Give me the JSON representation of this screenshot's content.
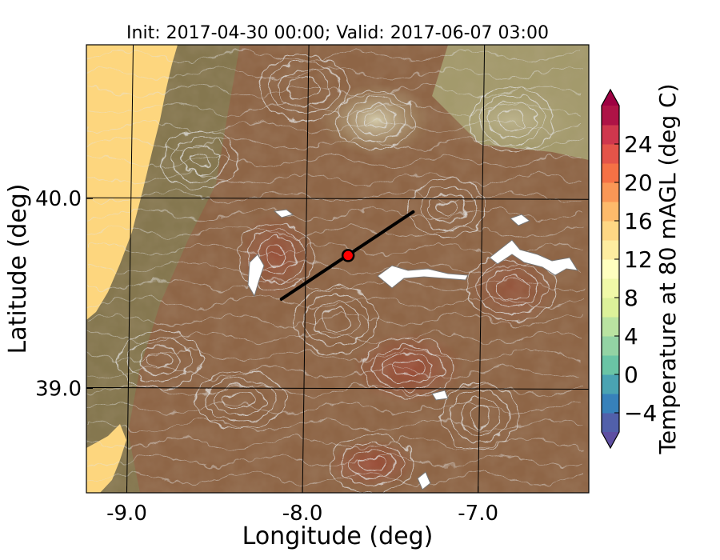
{
  "chart_data": {
    "type": "heatmap",
    "title": "Init: 2017-04-30 00:00; Valid: 2017-06-07 03:00",
    "xlabel": "Longitude (deg)",
    "ylabel": "Latitude (deg)",
    "xlim": [
      -9.23,
      -6.37
    ],
    "ylim": [
      38.45,
      40.81
    ],
    "xticks": [
      -9.0,
      -8.0,
      -7.0
    ],
    "xtick_labels": [
      "-9.0",
      "-8.0",
      "-7.0"
    ],
    "yticks": [
      39.0,
      40.0
    ],
    "ytick_labels": [
      "39.0",
      "40.0"
    ],
    "grid": true,
    "colorbar": {
      "label": "Temperature at 80 mAGL (deg C)",
      "min": -6,
      "max": 28,
      "step": 2,
      "extend": "both",
      "ticks": [
        -4,
        0,
        4,
        8,
        12,
        16,
        20,
        24
      ],
      "tick_labels": [
        "−4",
        "0",
        "4",
        "8",
        "12",
        "16",
        "20",
        "24"
      ]
    },
    "transect": {
      "start": {
        "lon": -8.12,
        "lat": 39.47
      },
      "end": {
        "lon": -7.37,
        "lat": 39.93
      },
      "color": "#000000"
    },
    "point": {
      "lon": -7.74,
      "lat": 39.7,
      "color": "#ff0000"
    },
    "field_colors": {
      "land_west": "#85774f",
      "land_central": "#8e6546",
      "land_north": "#a39a6c",
      "land_hot": "#9a4f3a",
      "sea": "#fdd67e",
      "contour": "#e2e2e2"
    }
  }
}
